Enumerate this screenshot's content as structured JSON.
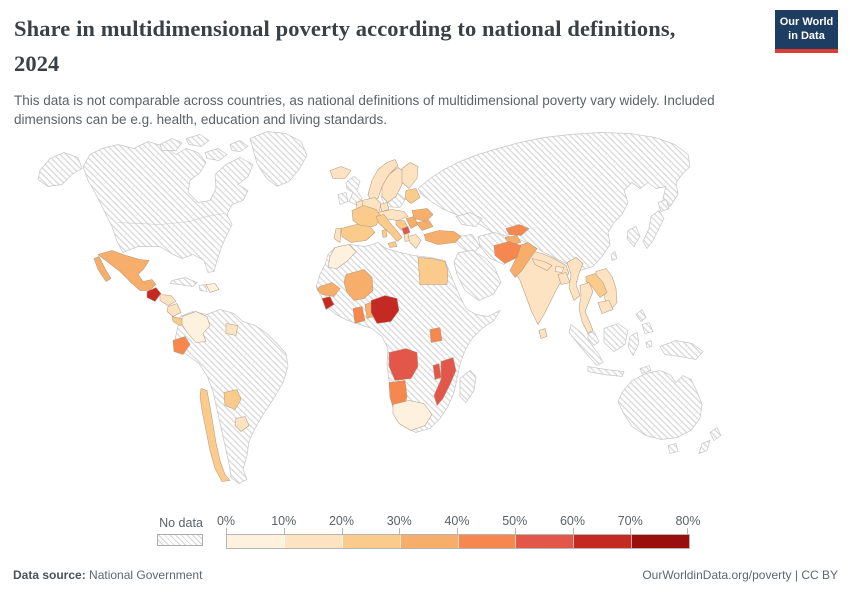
{
  "header": {
    "title_lines": {
      "0": "Share in multidimensional poverty according to national definitions,",
      "1": "2024"
    },
    "subtitle": "This data is not comparable across countries, as national definitions of multidimensional poverty vary widely. Included dimensions can be e.g. health, education and living standards.",
    "logo": {
      "line1": "Our World",
      "line2": "in Data",
      "bg": "#1d3d63",
      "accent": "#dc3e31"
    }
  },
  "legend": {
    "no_data_label": "No data",
    "ticks": [
      "0%",
      "10%",
      "20%",
      "30%",
      "40%",
      "50%",
      "60%",
      "70%",
      "80%"
    ],
    "bins": [
      {
        "range": "0-10%",
        "color": "#FEF1DE"
      },
      {
        "range": "10-20%",
        "color": "#FDE3C1"
      },
      {
        "range": "20-30%",
        "color": "#FBCB8C"
      },
      {
        "range": "30-40%",
        "color": "#F8AE6B"
      },
      {
        "range": "40-50%",
        "color": "#F6874E"
      },
      {
        "range": "50-60%",
        "color": "#E2574A"
      },
      {
        "range": "60-70%",
        "color": "#C42A22"
      },
      {
        "range": "70-80%",
        "color": "#9B0E0E"
      }
    ]
  },
  "footer": {
    "data_source_label": "Data source:",
    "data_source_value": "National Government",
    "link": "OurWorldinData.org/poverty",
    "divider": "|",
    "license": "CC BY"
  },
  "chart_data": {
    "type": "choropleth_map",
    "title": "Share in multidimensional poverty according to national definitions, 2024",
    "unit": "% of population",
    "note": "Countries shown hatched have no data. Values are read from the map's color bins.",
    "bins": [
      "0-10%",
      "10-20%",
      "20-30%",
      "30-40%",
      "40-50%",
      "50-60%",
      "60-70%",
      "70-80%"
    ],
    "countries": [
      {
        "name": "Mexico",
        "bin": "30-40%"
      },
      {
        "name": "Guatemala",
        "bin": "60-70%"
      },
      {
        "name": "Honduras",
        "bin": "10-20%"
      },
      {
        "name": "Nicaragua",
        "bin": "10-20%"
      },
      {
        "name": "Costa Rica",
        "bin": "20-30%"
      },
      {
        "name": "Panama",
        "bin": "20-30%"
      },
      {
        "name": "Dominican Republic",
        "bin": "0-10%"
      },
      {
        "name": "Colombia",
        "bin": "0-10%"
      },
      {
        "name": "Ecuador",
        "bin": "40-50%"
      },
      {
        "name": "Guyana",
        "bin": "10-20%"
      },
      {
        "name": "Chile",
        "bin": "20-30%"
      },
      {
        "name": "Paraguay",
        "bin": "20-30%"
      },
      {
        "name": "Uruguay",
        "bin": "10-20%"
      },
      {
        "name": "Iceland",
        "bin": "10-20%"
      },
      {
        "name": "Norway",
        "bin": "10-20%"
      },
      {
        "name": "Sweden",
        "bin": "10-20%"
      },
      {
        "name": "Finland",
        "bin": "10-20%"
      },
      {
        "name": "Denmark",
        "bin": "10-20%"
      },
      {
        "name": "Baltic states",
        "bin": "20-30%"
      },
      {
        "name": "Germany",
        "bin": "10-20%"
      },
      {
        "name": "Benelux",
        "bin": "10-20%"
      },
      {
        "name": "Central Europe",
        "bin": "10-20%"
      },
      {
        "name": "France",
        "bin": "20-30%"
      },
      {
        "name": "Spain",
        "bin": "20-30%"
      },
      {
        "name": "Portugal",
        "bin": "10-20%"
      },
      {
        "name": "Italy",
        "bin": "20-30%"
      },
      {
        "name": "Croatia and Bosnia",
        "bin": "20-30%"
      },
      {
        "name": "Serbia",
        "bin": "30-40%"
      },
      {
        "name": "Montenegro",
        "bin": "50-60%"
      },
      {
        "name": "Albania",
        "bin": "10-20%"
      },
      {
        "name": "Greece",
        "bin": "10-20%"
      },
      {
        "name": "Romania",
        "bin": "30-40%"
      },
      {
        "name": "Bulgaria",
        "bin": "30-40%"
      },
      {
        "name": "Turkey",
        "bin": "30-40%"
      },
      {
        "name": "Morocco",
        "bin": "0-10%"
      },
      {
        "name": "Egypt",
        "bin": "20-30%"
      },
      {
        "name": "Mali",
        "bin": "30-40%"
      },
      {
        "name": "Senegal",
        "bin": "30-40%"
      },
      {
        "name": "Sierra Leone",
        "bin": "60-70%"
      },
      {
        "name": "Ghana",
        "bin": "40-50%"
      },
      {
        "name": "Benin",
        "bin": "30-40%"
      },
      {
        "name": "Nigeria",
        "bin": "60-70%"
      },
      {
        "name": "Uganda",
        "bin": "40-50%"
      },
      {
        "name": "Angola",
        "bin": "50-60%"
      },
      {
        "name": "Namibia",
        "bin": "40-50%"
      },
      {
        "name": "Malawi",
        "bin": "50-60%"
      },
      {
        "name": "Mozambique",
        "bin": "50-60%"
      },
      {
        "name": "South Africa",
        "bin": "0-10%"
      },
      {
        "name": "Kyrgyzstan",
        "bin": "40-50%"
      },
      {
        "name": "Tajikistan",
        "bin": "30-40%"
      },
      {
        "name": "Afghanistan",
        "bin": "40-50%"
      },
      {
        "name": "Pakistan",
        "bin": "30-40%"
      },
      {
        "name": "India",
        "bin": "10-20%"
      },
      {
        "name": "Nepal",
        "bin": "10-20%"
      },
      {
        "name": "Bhutan",
        "bin": "0-10%"
      },
      {
        "name": "Bangladesh",
        "bin": "10-20%"
      },
      {
        "name": "Sri Lanka",
        "bin": "10-20%"
      },
      {
        "name": "Myanmar",
        "bin": "10-20%"
      },
      {
        "name": "Thailand",
        "bin": "10-20%"
      },
      {
        "name": "Laos",
        "bin": "20-30%"
      },
      {
        "name": "Vietnam",
        "bin": "10-20%"
      },
      {
        "name": "Cambodia",
        "bin": "10-20%"
      }
    ]
  }
}
